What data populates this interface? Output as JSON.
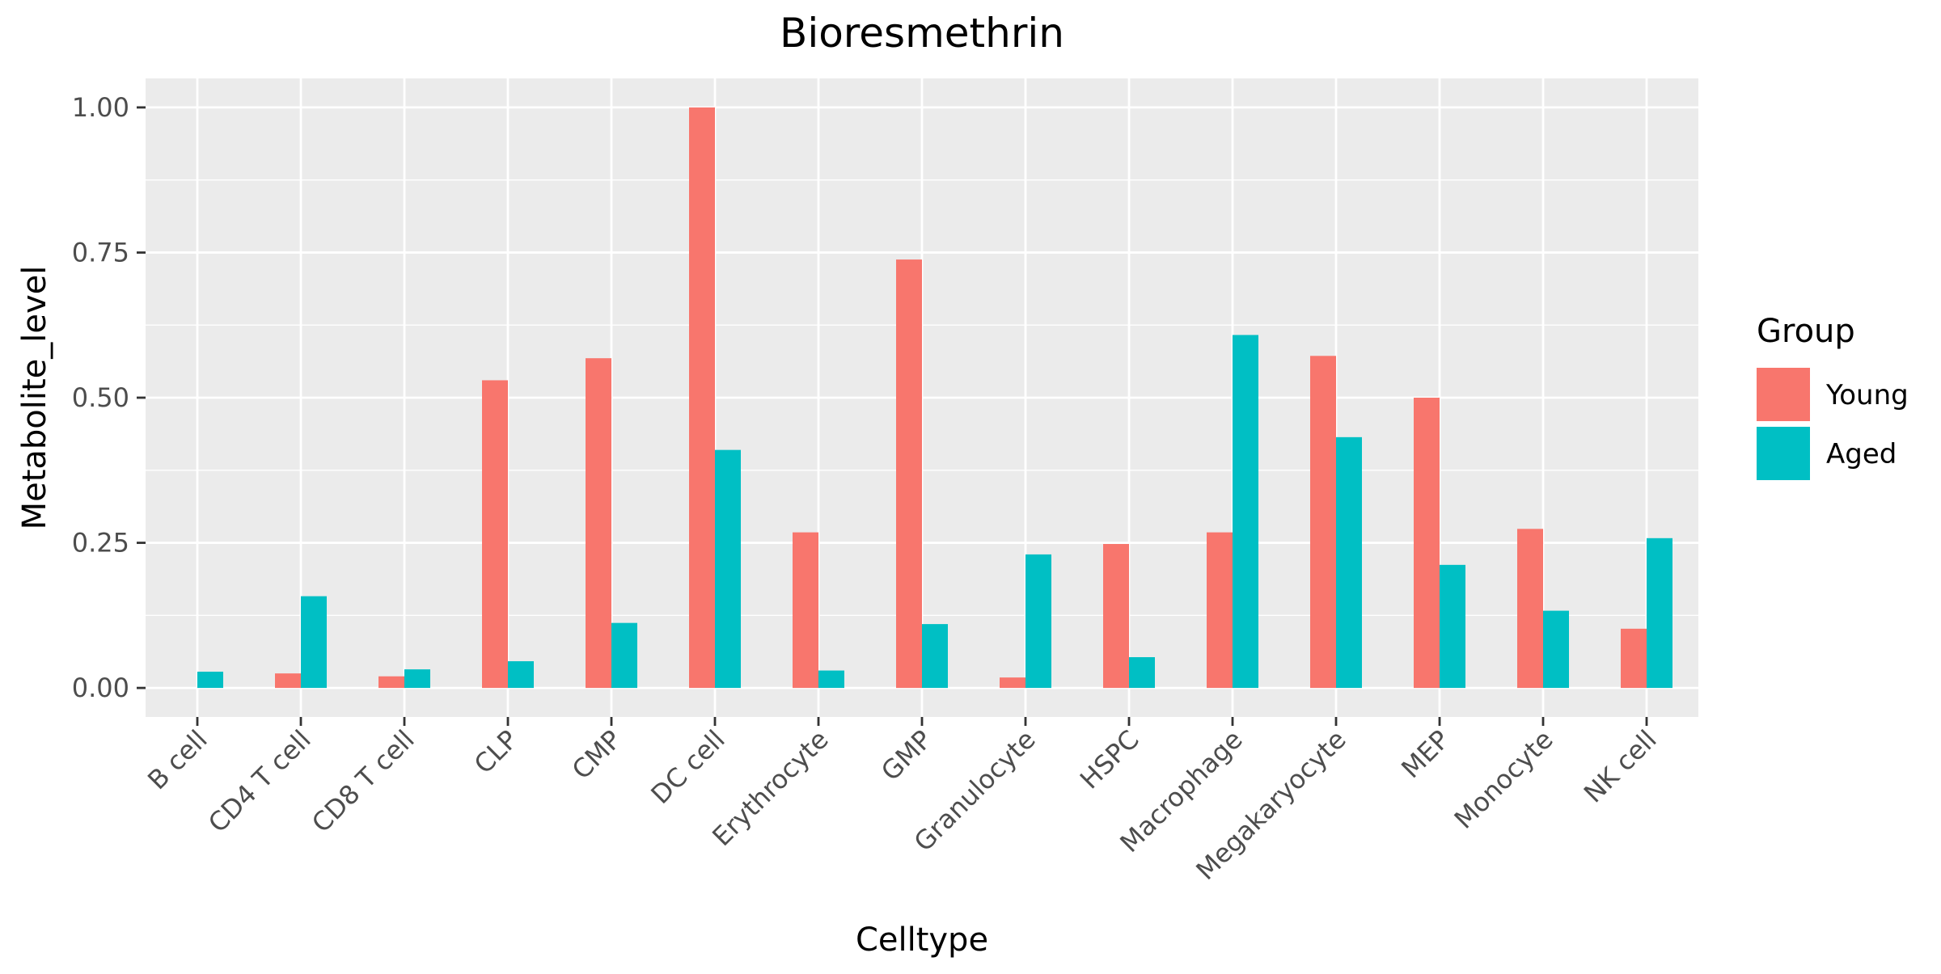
{
  "chart_data": {
    "type": "bar",
    "title": "Bioresmethrin",
    "xlabel": "Celltype",
    "ylabel": "Metabolite_level",
    "categories": [
      "B cell",
      "CD4 T cell",
      "CD8 T cell",
      "CLP",
      "CMP",
      "DC cell",
      "Erythrocyte",
      "GMP",
      "Granulocyte",
      "HSPC",
      "Macrophage",
      "Megakaryocyte",
      "MEP",
      "Monocyte",
      "NK cell"
    ],
    "series": [
      {
        "name": "Young",
        "color": "#F8766D",
        "values": [
          0.0,
          0.025,
          0.02,
          0.53,
          0.568,
          1.0,
          0.268,
          0.738,
          0.018,
          0.248,
          0.268,
          0.572,
          0.5,
          0.274,
          0.102
        ]
      },
      {
        "name": "Aged",
        "color": "#00BFC4",
        "values": [
          0.028,
          0.158,
          0.032,
          0.046,
          0.112,
          0.41,
          0.03,
          0.11,
          0.23,
          0.053,
          0.608,
          0.432,
          0.212,
          0.133,
          0.258
        ]
      }
    ],
    "ylim": [
      -0.05,
      1.05
    ],
    "yticks": [
      0.0,
      0.25,
      0.5,
      0.75,
      1.0
    ],
    "ytick_labels": [
      "0.00",
      "0.25",
      "0.50",
      "0.75",
      "1.00"
    ],
    "legend": {
      "title": "Group",
      "position": "right"
    },
    "grid": true,
    "panel_background": "#EBEBEB"
  }
}
